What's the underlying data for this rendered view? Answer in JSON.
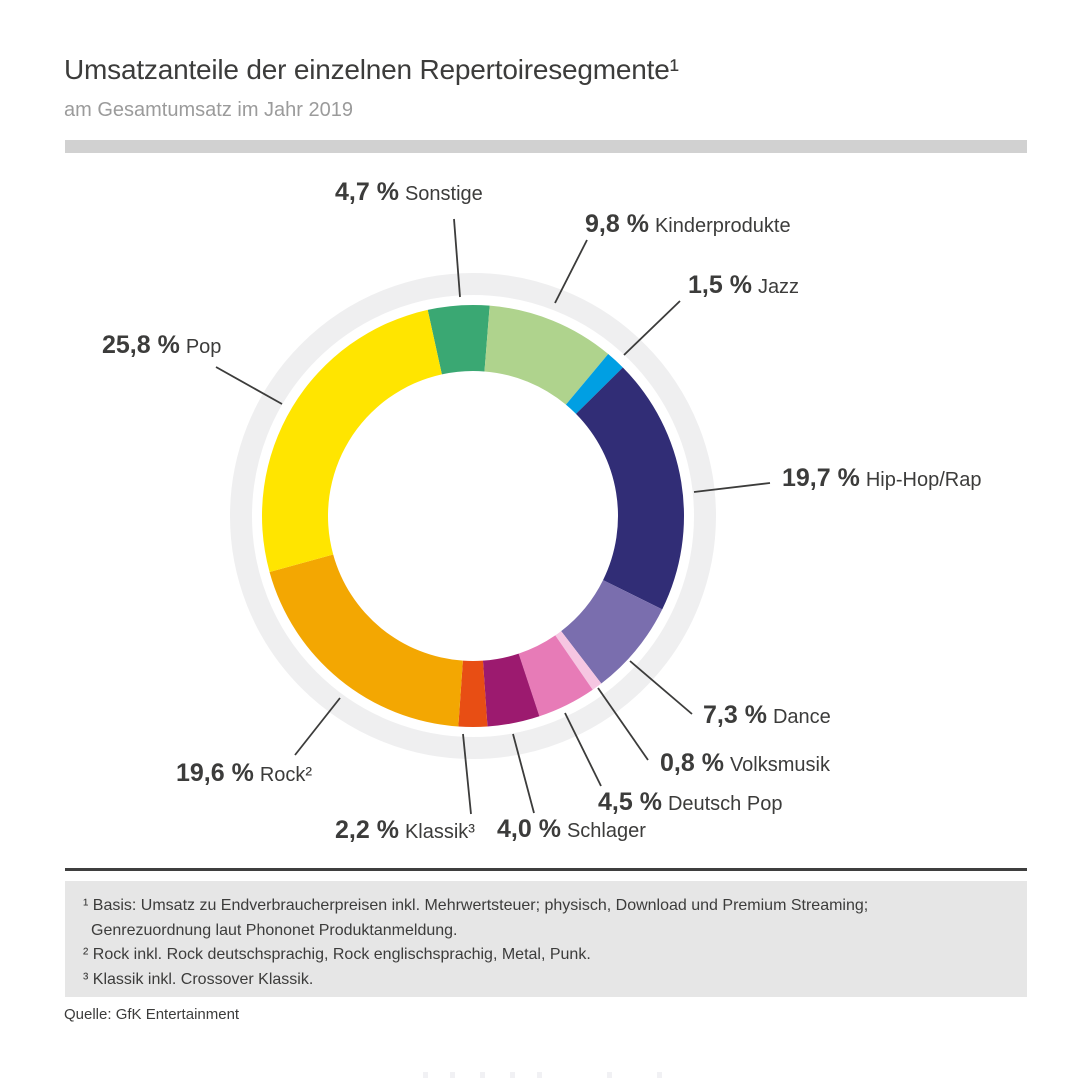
{
  "header": {
    "title": "Umsatzanteile der einzelnen Repertoiresegmente¹",
    "subtitle": "am Gesamtumsatz im Jahr 2019"
  },
  "chart_data": {
    "type": "pie",
    "subtype": "donut",
    "title": "Umsatzanteile der einzelnen Repertoiresegmente am Gesamtumsatz im Jahr 2019",
    "unit": "%",
    "direction": "clockwise",
    "start_angle_deg": -12.4,
    "inner_radius_ratio": 0.69,
    "legend_position": "labels-with-leader-lines",
    "segments": [
      {
        "label": "Sonstige",
        "value": 4.7,
        "value_label": "4,7 %",
        "color": "#3AA873"
      },
      {
        "label": "Kinderprodukte",
        "value": 9.8,
        "value_label": "9,8 %",
        "color": "#AFD38D"
      },
      {
        "label": "Jazz",
        "value": 1.5,
        "value_label": "1,5 %",
        "color": "#009FE3"
      },
      {
        "label": "Hip-Hop/Rap",
        "value": 19.7,
        "value_label": "19,7 %",
        "color": "#312D76"
      },
      {
        "label": "Dance",
        "value": 7.3,
        "value_label": "7,3 %",
        "color": "#7A6EAE"
      },
      {
        "label": "Volksmusik",
        "value": 0.8,
        "value_label": "0,8 %",
        "color": "#F6C6E2"
      },
      {
        "label": "Deutsch Pop",
        "value": 4.5,
        "value_label": "4,5 %",
        "color": "#E77BB7"
      },
      {
        "label": "Schlager",
        "value": 4.0,
        "value_label": "4,0 %",
        "color": "#9C1A6F"
      },
      {
        "label": "Klassik³",
        "value": 2.2,
        "value_label": "2,2 %",
        "color": "#E84E14"
      },
      {
        "label": "Rock²",
        "value": 19.6,
        "value_label": "19,6 %",
        "color": "#F3A702"
      },
      {
        "label": "Pop",
        "value": 25.8,
        "value_label": "25,8 %",
        "color": "#FFE500"
      }
    ],
    "decor": {
      "background_ring_color": "#EFEFF0",
      "leader_line_color": "#3C3C3B",
      "label_text_color": "#3C3C3B"
    }
  },
  "footnotes": {
    "lines": [
      "¹ Basis: Umsatz zu Endverbraucherpreisen inkl. Mehrwertsteuer; physisch, Download und Premium Streaming;",
      "Genrezuordnung laut Phononet Produktanmeldung.",
      "² Rock inkl. Rock deutschsprachig, Rock englischsprachig, Metal, Punk.",
      "³ Klassik inkl. Crossover Klassik."
    ]
  },
  "source": "Quelle: GfK Entertainment"
}
